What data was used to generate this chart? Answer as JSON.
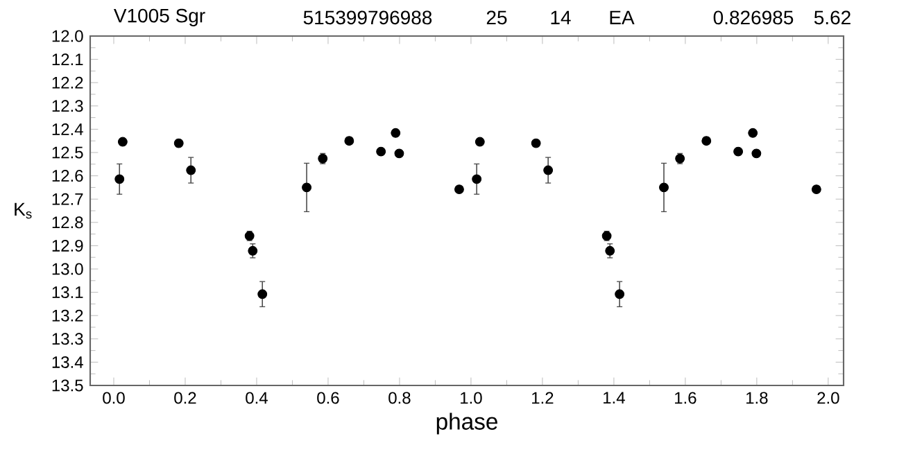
{
  "chart_data": {
    "type": "scatter",
    "title": "V1005 Sgr",
    "annotations": [
      "515399796988",
      "25",
      "14",
      "EA",
      "0.826985",
      "5.62"
    ],
    "xlabel": "phase",
    "ylabel": "K$_{s}$",
    "x": [
      0.016,
      0.025,
      0.182,
      0.216,
      0.38,
      0.389,
      0.416,
      0.54,
      0.585,
      0.659,
      0.748,
      0.789,
      0.799,
      0.967,
      1.016,
      1.025,
      1.182,
      1.216,
      1.38,
      1.389,
      1.416,
      1.54,
      1.585,
      1.659,
      1.748,
      1.789,
      1.799,
      1.967
    ],
    "values": [
      12.614,
      12.454,
      12.46,
      12.576,
      12.858,
      12.922,
      13.108,
      12.65,
      12.526,
      12.45,
      12.496,
      12.416,
      12.504,
      12.658,
      12.614,
      12.454,
      12.46,
      12.576,
      12.858,
      12.922,
      13.108,
      12.65,
      12.526,
      12.45,
      12.496,
      12.416,
      12.504,
      12.658
    ],
    "errors": [
      0.065,
      0.01,
      0.01,
      0.055,
      0.02,
      0.03,
      0.054,
      0.104,
      0.022,
      0.015,
      0.01,
      0.01,
      0.01,
      0.01,
      0.065,
      0.01,
      0.01,
      0.055,
      0.02,
      0.03,
      0.054,
      0.104,
      0.022,
      0.015,
      0.01,
      0.01,
      0.01,
      0.01
    ],
    "color": "#000000",
    "marker": "circle",
    "grid": false,
    "xlim": [
      -0.066,
      2.043
    ],
    "ylim": [
      13.5,
      12.0
    ],
    "xticks": [
      {
        "value": 0,
        "label": "0.0"
      },
      0.2,
      0.4,
      0.6,
      0.8,
      {
        "value": 1,
        "label": "1.0"
      },
      1.2,
      1.4,
      1.6,
      1.8,
      {
        "value": 2,
        "label": "2.0"
      }
    ],
    "yticks": [
      {
        "value": 12,
        "label": "12.0"
      },
      12.1,
      12.2,
      12.3,
      12.4,
      12.5,
      12.6,
      12.7,
      12.8,
      12.9,
      {
        "value": 13,
        "label": "13.0"
      },
      13.1,
      13.2,
      13.3,
      13.4,
      13.5
    ]
  }
}
